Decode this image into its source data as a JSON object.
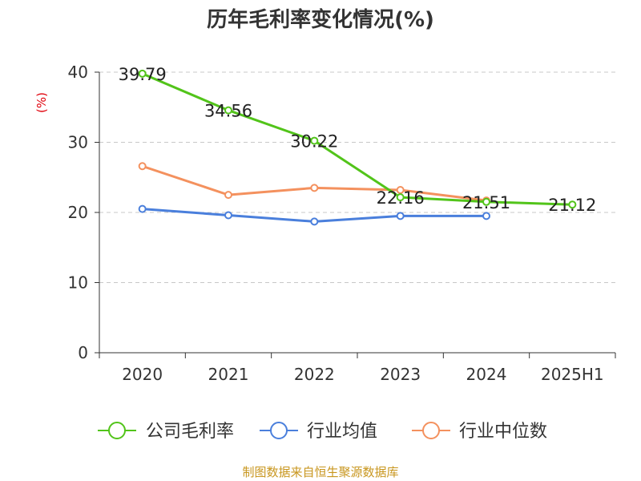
{
  "chart_data": {
    "type": "line",
    "title": "历年毛利率变化情况(%)",
    "ylabel": "(%)",
    "xlabel": "",
    "categories": [
      "2020",
      "2021",
      "2022",
      "2023",
      "2024",
      "2025H1"
    ],
    "ylim": [
      0,
      40
    ],
    "yticks": [
      0,
      10,
      20,
      30,
      40
    ],
    "grid": true,
    "legend_position": "bottom",
    "series": [
      {
        "name": "公司毛利率",
        "color": "#52c41a",
        "values": [
          39.79,
          34.56,
          30.22,
          22.16,
          21.51,
          21.12
        ],
        "labels": [
          "39.79",
          "34.56",
          "30.22",
          "22.16",
          "21.51",
          "21.12"
        ]
      },
      {
        "name": "行业均值",
        "color": "#4a7fdc",
        "values": [
          20.5,
          19.6,
          18.7,
          19.5,
          19.5,
          null
        ]
      },
      {
        "name": "行业中位数",
        "color": "#f4915e",
        "values": [
          26.6,
          22.5,
          23.5,
          23.2,
          21.7,
          null
        ]
      }
    ]
  },
  "footer": "制图数据来自恒生聚源数据库"
}
